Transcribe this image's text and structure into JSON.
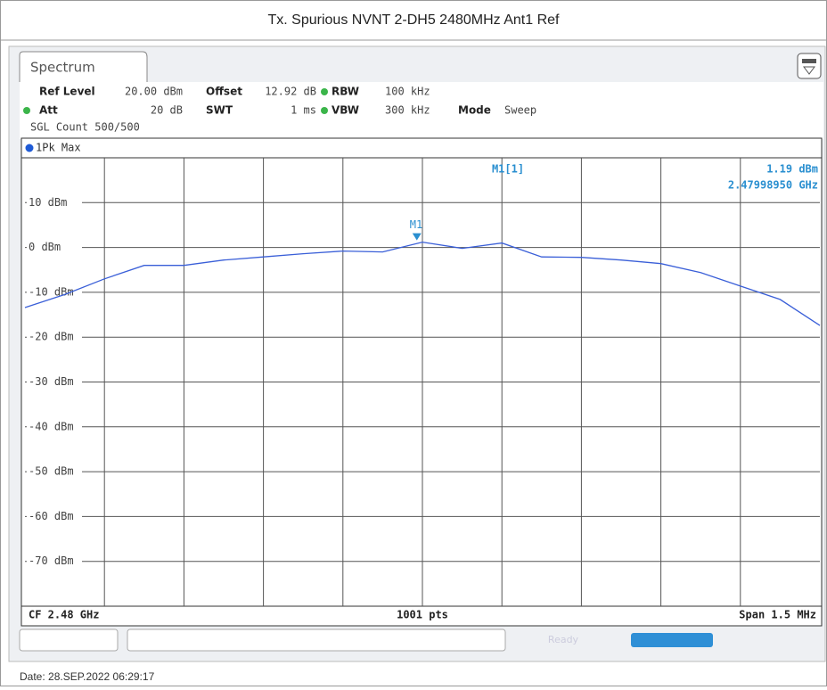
{
  "window_title": "Tx. Spurious NVNT 2-DH5 2480MHz Ant1 Ref",
  "tab": "Spectrum",
  "settings": {
    "ref_level_label": "Ref Level",
    "ref_level": "20.00 dBm",
    "offset_label": "Offset",
    "offset": "12.92 dB",
    "rbw_label": "RBW",
    "rbw": "100 kHz",
    "att_label": "Att",
    "att": "20 dB",
    "swt_label": "SWT",
    "swt": "1 ms",
    "vbw_label": "VBW",
    "vbw": "300 kHz",
    "mode_label": "Mode",
    "mode": "Sweep",
    "count": "SGL Count 500/500"
  },
  "trace_label": "1Pk Max",
  "footer": {
    "center_freq": "CF 2.48 GHz",
    "points": "1001 pts",
    "span": "Span 1.5 MHz"
  },
  "status": "Ready",
  "date": "Date: 28.SEP.2022  06:29:17",
  "chart_data": {
    "type": "line",
    "x": [
      2.47925,
      2.479325,
      2.4794,
      2.479475,
      2.47955,
      2.479625,
      2.4797,
      2.479775,
      2.47985,
      2.479925,
      2.48,
      2.480075,
      2.48015,
      2.480225,
      2.4803,
      2.480375,
      2.48045,
      2.480525,
      2.4806,
      2.480675,
      2.48075
    ],
    "series": [
      {
        "name": "1Pk Max",
        "color": "#3a5fd8",
        "values": [
          -13.4,
          -10.5,
          -7.0,
          -4.0,
          -4.0,
          -2.8,
          -2.1,
          -1.4,
          -0.8,
          -1.0,
          1.2,
          -0.2,
          1.0,
          -2.1,
          -2.2,
          -2.8,
          -3.6,
          -5.6,
          -8.6,
          -11.6,
          -17.4
        ]
      }
    ],
    "xlim": [
      2.47925,
      2.48075
    ],
    "ylim": [
      -80,
      20
    ],
    "yticks": [
      {
        "value": 10,
        "label": "10 dBm"
      },
      {
        "value": 0,
        "label": "0 dBm"
      },
      {
        "value": -10,
        "label": "-10 dBm"
      },
      {
        "value": -20,
        "label": "-20 dBm"
      },
      {
        "value": -30,
        "label": "-30 dBm"
      },
      {
        "value": -40,
        "label": "-40 dBm"
      },
      {
        "value": -50,
        "label": "-50 dBm"
      },
      {
        "value": -60,
        "label": "-60 dBm"
      },
      {
        "value": -70,
        "label": "-70 dBm"
      }
    ],
    "grid": true,
    "marker": {
      "label": "M1",
      "name": "M1[1]",
      "x": 2.4799895,
      "y": 1.19,
      "y_label": "1.19 dBm",
      "x_label": "2.47998950 GHz",
      "color": "#2a8fd0"
    }
  }
}
